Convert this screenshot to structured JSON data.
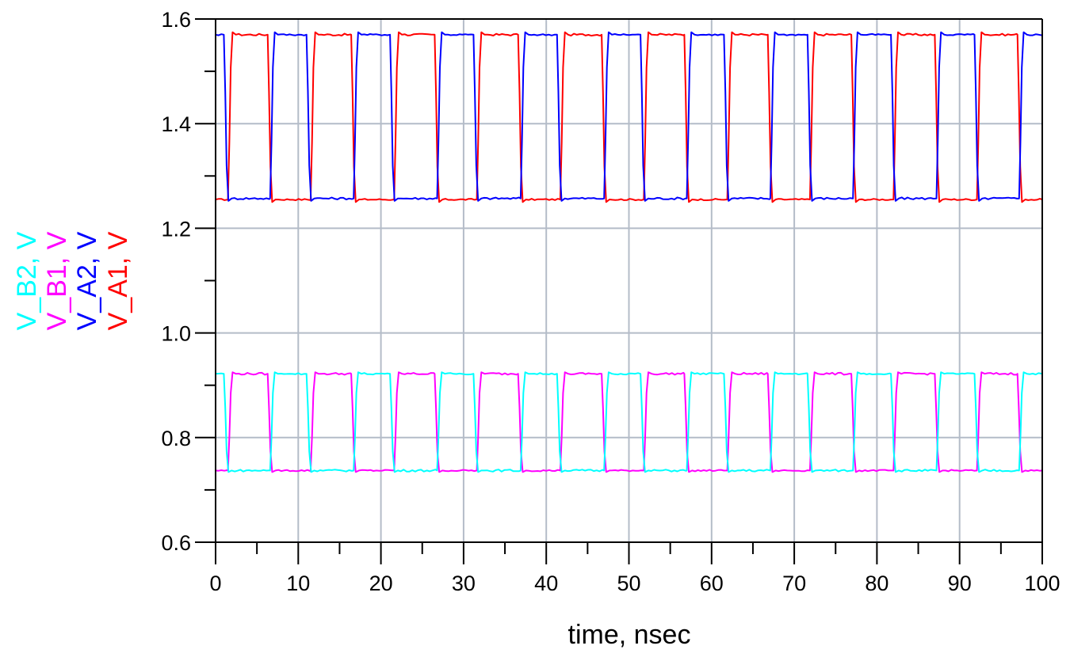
{
  "chart_data": {
    "type": "line",
    "title": "",
    "xlabel": "time, nsec",
    "ylabel": "",
    "legend_position": "left-rotated-y-label",
    "grid": true,
    "xlim": [
      0,
      100
    ],
    "ylim": [
      0.6,
      1.6
    ],
    "x_ticks": [
      0,
      10,
      20,
      30,
      40,
      50,
      60,
      70,
      80,
      90,
      100
    ],
    "x_tick_labels": [
      "0",
      "10",
      "20",
      "30",
      "40",
      "50",
      "60",
      "70",
      "80",
      "90",
      "100"
    ],
    "y_ticks": [
      0.6,
      0.8,
      1.0,
      1.2,
      1.4,
      1.6
    ],
    "y_tick_labels": [
      "0.6",
      "0.8",
      "1.0",
      "1.2",
      "1.4",
      "1.6"
    ],
    "x_minor_step": 5,
    "y_minor_step": 0.1,
    "colors": {
      "grid": "#b4bcc8",
      "axis": "#000000"
    },
    "series": [
      {
        "name": "V_A1, V",
        "color": "#ff0000",
        "high": 1.57,
        "low": 1.255,
        "initial_state": "low",
        "transitions_ns": [
          1.5,
          6.3,
          11.5,
          16.4,
          21.6,
          26.5,
          31.6,
          36.6,
          41.7,
          46.7,
          51.8,
          56.7,
          61.9,
          66.8,
          71.9,
          76.9,
          82.0,
          87.0,
          92.1,
          97.0
        ]
      },
      {
        "name": "V_A2, V",
        "color": "#0000ff",
        "high": 1.57,
        "low": 1.257,
        "initial_state": "high",
        "transitions_ns": [
          1.0,
          6.6,
          11.0,
          16.7,
          21.1,
          26.8,
          31.2,
          36.9,
          41.3,
          47.0,
          51.4,
          57.0,
          61.5,
          67.1,
          71.6,
          77.1,
          81.7,
          87.2,
          91.8,
          97.2
        ]
      },
      {
        "name": "V_B1, V",
        "color": "#ff00ff",
        "high": 0.922,
        "low": 0.737,
        "initial_state": "low",
        "transitions_ns": [
          1.5,
          6.3,
          11.5,
          16.4,
          21.6,
          26.5,
          31.6,
          36.6,
          41.7,
          46.7,
          51.8,
          56.7,
          61.9,
          66.8,
          71.9,
          76.9,
          82.0,
          87.0,
          92.1,
          97.0
        ]
      },
      {
        "name": "V_B2, V",
        "color": "#00ffff",
        "high": 0.922,
        "low": 0.737,
        "initial_state": "high",
        "transitions_ns": [
          1.0,
          6.6,
          11.0,
          16.7,
          21.1,
          26.8,
          31.2,
          36.9,
          41.3,
          47.0,
          51.4,
          57.0,
          61.5,
          67.1,
          71.6,
          77.1,
          81.7,
          87.2,
          91.8,
          97.2
        ]
      }
    ]
  },
  "legend": {
    "items": [
      {
        "label": "V_B2, V",
        "color": "#00ffff"
      },
      {
        "label": "V_B1, V",
        "color": "#ff00ff"
      },
      {
        "label": "V_A2, V",
        "color": "#0000ff"
      },
      {
        "label": "V_A1, V",
        "color": "#ff0000"
      }
    ]
  },
  "axis": {
    "x_title": "time, nsec"
  }
}
